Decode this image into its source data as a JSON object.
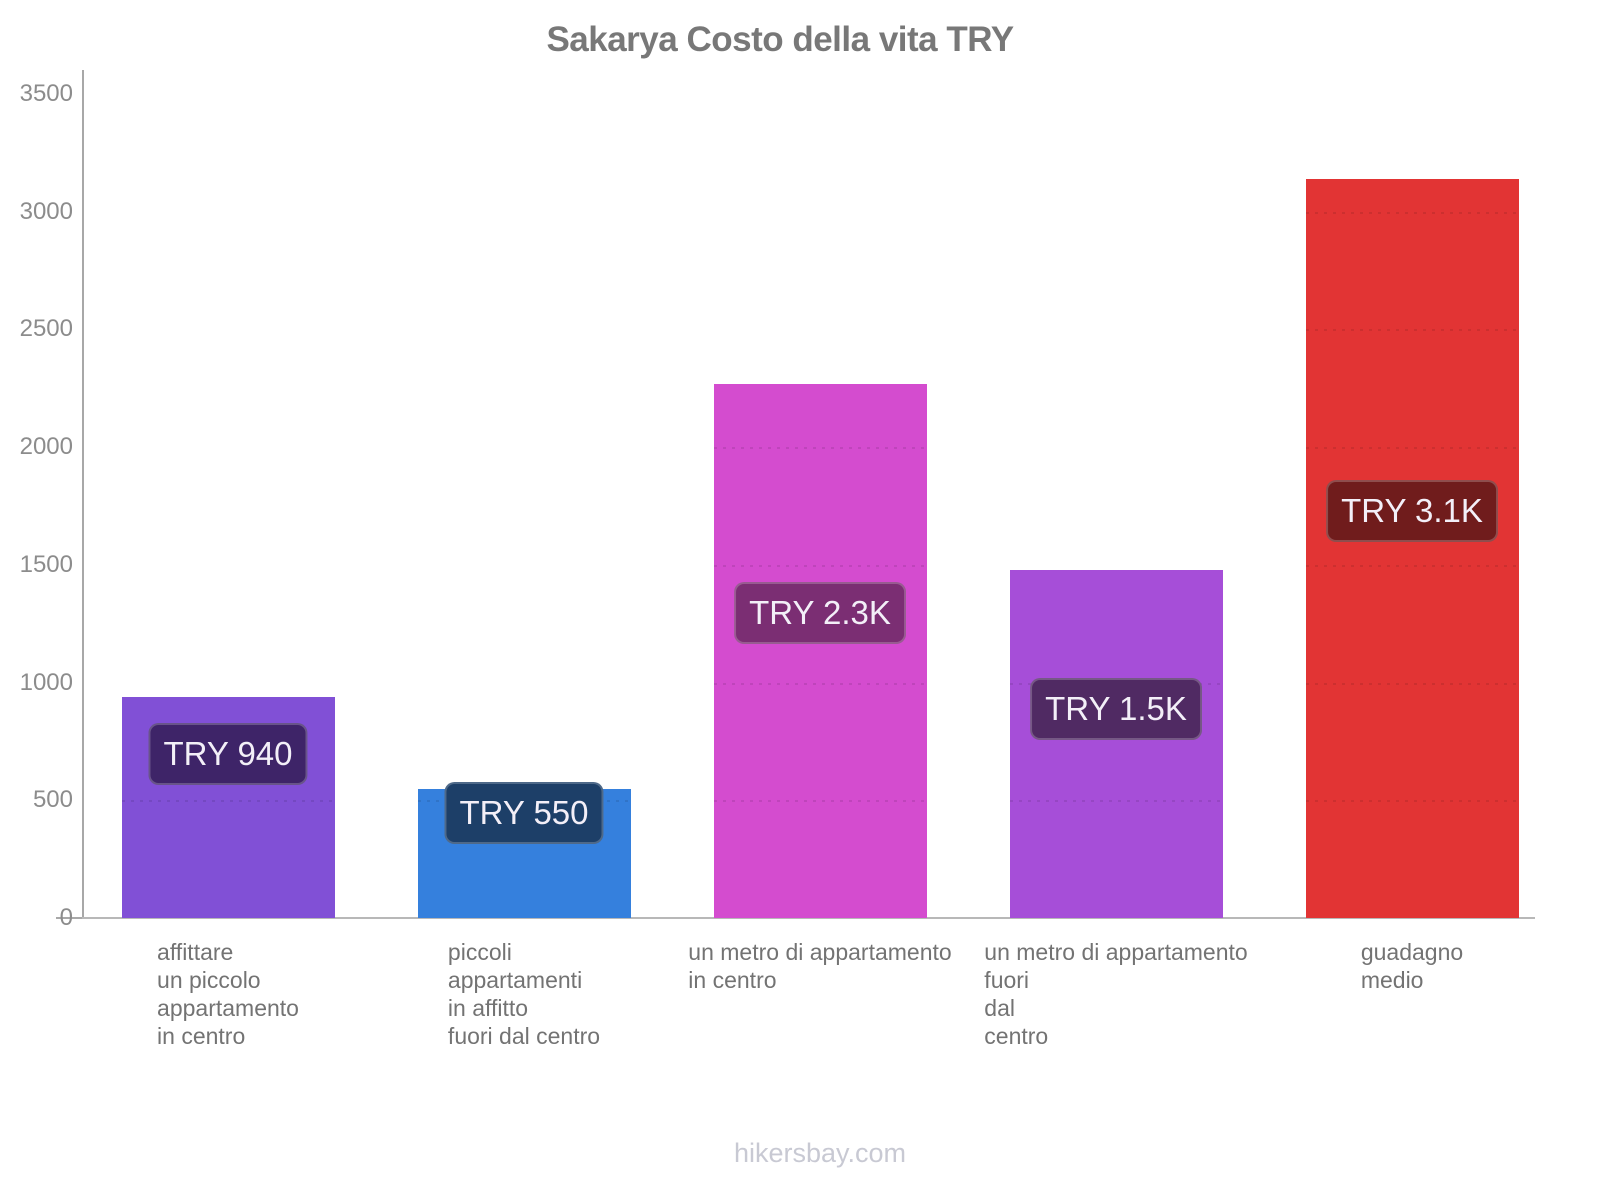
{
  "chart_data": {
    "type": "bar",
    "title": "Sakarya Costo della vita TRY",
    "xlabel": "",
    "ylabel": "",
    "ylim": [
      0,
      3500
    ],
    "yticks": [
      0,
      500,
      1000,
      1500,
      2000,
      2500,
      3000,
      3500
    ],
    "grid": "faint dashed horizontal lines visible only over bars",
    "legend": "none",
    "currency": "TRY",
    "categories": [
      "affittare un piccolo appartamento in centro",
      "piccoli appartamenti in affitto fuori dal centro",
      "un metro di appartamento in centro",
      "un metro di appartamento fuori dal centro",
      "guadagno medio"
    ],
    "category_lines": [
      [
        "affittare",
        "un piccolo",
        "appartamento",
        "in centro"
      ],
      [
        "piccoli",
        "appartamenti",
        "in affitto",
        "fuori dal centro"
      ],
      [
        "un metro di appartamento",
        "in centro"
      ],
      [
        "un metro di appartamento",
        "fuori",
        "dal",
        "centro"
      ],
      [
        "guadagno",
        "medio"
      ]
    ],
    "values": [
      940,
      550,
      2270,
      1480,
      3140
    ],
    "bar_labels": [
      "TRY 940",
      "TRY 550",
      "TRY 2.3K",
      "TRY 1.5K",
      "TRY 3.1K"
    ],
    "bar_colors": [
      "#8150d6",
      "#3580dd",
      "#d44ccf",
      "#a64ed8",
      "#e23434"
    ],
    "badge_colors": [
      "#3e2468",
      "#1d3f68",
      "#7b2e73",
      "#502a63",
      "#701c1c"
    ]
  },
  "footer": "hikersbay.com",
  "colors": {
    "background": "#ffffff",
    "title": "#787878",
    "y_tick_labels": "#8c8c8c",
    "category_labels": "#737373",
    "axis_line": "#a8a8a8",
    "baseline": "#b8b8b8",
    "badge_text": "#f3eff8",
    "footer": "#c8c9d3"
  }
}
